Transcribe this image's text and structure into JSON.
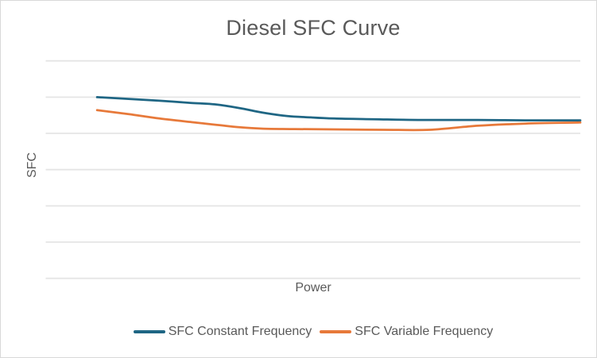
{
  "window": {
    "background": "#ffffff",
    "border_color": "#d8d8d8",
    "text_color": "#595959"
  },
  "chart_data": {
    "type": "line",
    "title": "Diesel SFC Curve",
    "xlabel": "Power",
    "ylabel": "SFC",
    "x_tick_labels": [],
    "y_tick_labels": [],
    "legend_position": "bottom",
    "grid": {
      "horizontal_lines": 7,
      "color": "#e5e5e5"
    },
    "ylim": [
      0,
      6
    ],
    "y_units": "relative gridline units (bottom gridline = 0, one unit per gridline; no numeric labels shown in chart)",
    "x_units": "fraction of plot width (no numeric labels shown in chart)",
    "series": [
      {
        "name": "SFC Constant Frequency",
        "color": "#1f6684",
        "points": [
          [
            0.096,
            5.0
          ],
          [
            0.155,
            4.95
          ],
          [
            0.213,
            4.9
          ],
          [
            0.273,
            4.84
          ],
          [
            0.317,
            4.8
          ],
          [
            0.362,
            4.7
          ],
          [
            0.407,
            4.57
          ],
          [
            0.451,
            4.48
          ],
          [
            0.496,
            4.44
          ],
          [
            0.54,
            4.41
          ],
          [
            0.615,
            4.39
          ],
          [
            0.704,
            4.37
          ],
          [
            0.808,
            4.37
          ],
          [
            0.897,
            4.36
          ],
          [
            1.0,
            4.36
          ]
        ]
      },
      {
        "name": "SFC Variable Frequency",
        "color": "#e7793a",
        "points": [
          [
            0.096,
            4.64
          ],
          [
            0.155,
            4.53
          ],
          [
            0.213,
            4.41
          ],
          [
            0.273,
            4.31
          ],
          [
            0.317,
            4.24
          ],
          [
            0.362,
            4.17
          ],
          [
            0.407,
            4.13
          ],
          [
            0.466,
            4.12
          ],
          [
            0.54,
            4.11
          ],
          [
            0.63,
            4.1
          ],
          [
            0.719,
            4.1
          ],
          [
            0.808,
            4.21
          ],
          [
            0.897,
            4.27
          ],
          [
            1.0,
            4.3
          ]
        ]
      }
    ]
  }
}
